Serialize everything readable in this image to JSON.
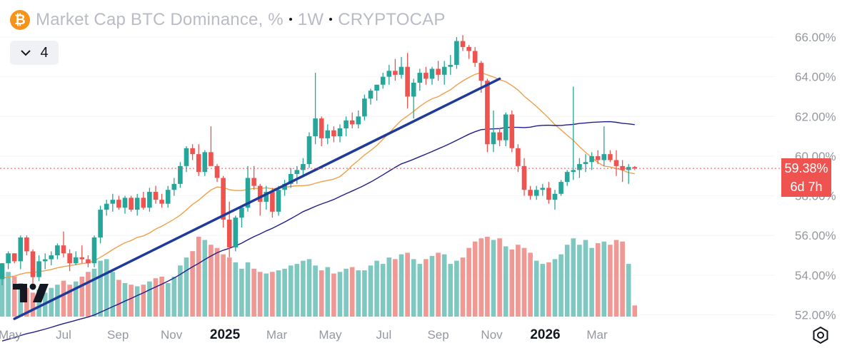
{
  "header": {
    "symbol_icon": "bitcoin-icon",
    "title": "Market Cap BTC Dominance, %",
    "interval": "1W",
    "exchange": "CRYPTOCAP"
  },
  "indicators_toggle": {
    "icon": "chevron-down-icon",
    "count": "4"
  },
  "price_label": {
    "value": "59.38%",
    "countdown": "6d 7h"
  },
  "colors": {
    "up": "#26a69a",
    "down": "#ef5350",
    "vol_up": "#7fc8c1",
    "vol_down": "#f09893",
    "ma_orange": "#f0a04b",
    "ma_navy": "#1f1f8a",
    "trendline": "#1e3a9a",
    "axis_text": "#9598a1",
    "price_line": "#ef5350"
  },
  "chart_data": {
    "type": "candlestick",
    "title": "Market Cap BTC Dominance, %",
    "interval": "1W",
    "y_axis": {
      "ticks": [
        "52.00%",
        "54.00%",
        "56.00%",
        "58.00%",
        "60.00%",
        "62.00%",
        "64.00%",
        "66.00%"
      ],
      "range": [
        51.8,
        67.0
      ]
    },
    "x_axis": {
      "ticks": [
        "May",
        "Jul",
        "Sep",
        "Nov",
        "2025",
        "Mar",
        "May",
        "Jul",
        "Sep",
        "Nov",
        "2026",
        "Mar"
      ],
      "tick_dates": [
        "2024-05-01",
        "2024-07-01",
        "2024-09-01",
        "2024-11-01",
        "2025-01-01",
        "2025-03-01",
        "2025-05-01",
        "2025-07-01",
        "2025-09-01",
        "2025-11-01",
        "2026-01-01",
        "2026-03-01"
      ]
    },
    "first_candle_date": "2024-04-22",
    "candles": [
      [
        53.8,
        54.6,
        53.5,
        54.6
      ],
      [
        54.6,
        55.2,
        54.3,
        55.1
      ],
      [
        55.1,
        55.1,
        54.6,
        54.7
      ],
      [
        54.7,
        56.0,
        54.3,
        55.9
      ],
      [
        55.9,
        56.0,
        55.0,
        55.2
      ],
      [
        55.2,
        55.3,
        53.6,
        53.9
      ],
      [
        53.9,
        55.0,
        53.7,
        54.7
      ],
      [
        54.7,
        55.1,
        54.3,
        54.8
      ],
      [
        54.8,
        55.2,
        54.5,
        55.0
      ],
      [
        55.0,
        55.6,
        54.8,
        55.5
      ],
      [
        55.5,
        56.2,
        54.9,
        55.1
      ],
      [
        55.1,
        55.3,
        54.2,
        54.6
      ],
      [
        54.6,
        55.2,
        54.5,
        54.9
      ],
      [
        54.9,
        55.5,
        54.6,
        54.8
      ],
      [
        54.8,
        55.0,
        54.4,
        54.6
      ],
      [
        54.6,
        56.0,
        54.4,
        55.9
      ],
      [
        55.9,
        57.5,
        55.6,
        57.3
      ],
      [
        57.3,
        57.8,
        57.0,
        57.6
      ],
      [
        57.6,
        58.1,
        57.2,
        57.8
      ],
      [
        57.8,
        58.0,
        57.3,
        57.4
      ],
      [
        57.4,
        58.0,
        57.1,
        57.9
      ],
      [
        57.9,
        58.0,
        57.2,
        57.3
      ],
      [
        57.3,
        58.1,
        57.0,
        57.9
      ],
      [
        57.9,
        58.2,
        57.3,
        57.4
      ],
      [
        57.4,
        58.4,
        57.2,
        58.2
      ],
      [
        58.2,
        58.5,
        57.6,
        57.8
      ],
      [
        57.8,
        58.1,
        57.4,
        57.6
      ],
      [
        57.6,
        58.5,
        57.4,
        58.3
      ],
      [
        58.3,
        58.9,
        58.0,
        58.6
      ],
      [
        58.6,
        59.7,
        58.4,
        59.5
      ],
      [
        59.5,
        60.5,
        59.2,
        60.4
      ],
      [
        60.4,
        60.6,
        59.8,
        60.1
      ],
      [
        60.1,
        60.6,
        59.0,
        59.2
      ],
      [
        59.2,
        60.3,
        59.0,
        60.2
      ],
      [
        60.2,
        61.5,
        59.6,
        59.5
      ],
      [
        59.5,
        59.6,
        58.7,
        58.9
      ],
      [
        58.9,
        59.0,
        56.4,
        56.8
      ],
      [
        56.8,
        57.7,
        54.9,
        55.4
      ],
      [
        55.4,
        57.0,
        55.2,
        56.9
      ],
      [
        56.9,
        57.3,
        56.4,
        57.4
      ],
      [
        57.4,
        59.5,
        57.2,
        58.9
      ],
      [
        58.9,
        59.5,
        58.3,
        58.5
      ],
      [
        58.5,
        58.6,
        57.0,
        57.7
      ],
      [
        57.7,
        58.5,
        57.3,
        58.2
      ],
      [
        58.2,
        58.4,
        56.9,
        57.2
      ],
      [
        57.2,
        58.5,
        57.0,
        58.3
      ],
      [
        58.3,
        58.8,
        58.0,
        58.6
      ],
      [
        58.6,
        59.4,
        58.4,
        59.1
      ],
      [
        59.1,
        59.5,
        58.6,
        59.3
      ],
      [
        59.3,
        59.9,
        59.0,
        59.6
      ],
      [
        59.6,
        61.2,
        59.4,
        61.0
      ],
      [
        61.0,
        64.2,
        60.6,
        61.9
      ],
      [
        61.9,
        62.0,
        60.5,
        60.9
      ],
      [
        60.9,
        61.6,
        60.6,
        61.3
      ],
      [
        61.3,
        61.5,
        60.7,
        61.0
      ],
      [
        61.0,
        61.6,
        60.7,
        61.4
      ],
      [
        61.4,
        62.0,
        61.0,
        61.8
      ],
      [
        61.8,
        62.2,
        61.4,
        61.6
      ],
      [
        61.6,
        62.3,
        61.4,
        62.0
      ],
      [
        62.0,
        63.1,
        61.8,
        62.9
      ],
      [
        62.9,
        63.4,
        62.6,
        63.3
      ],
      [
        63.3,
        63.6,
        62.8,
        63.6
      ],
      [
        63.6,
        64.2,
        63.4,
        64.0
      ],
      [
        64.0,
        64.6,
        63.6,
        64.3
      ],
      [
        64.3,
        64.9,
        63.8,
        64.1
      ],
      [
        64.1,
        65.0,
        63.9,
        64.5
      ],
      [
        64.5,
        65.2,
        62.4,
        63.0
      ],
      [
        63.0,
        63.9,
        61.9,
        63.7
      ],
      [
        63.7,
        64.4,
        63.3,
        64.2
      ],
      [
        64.2,
        64.5,
        63.6,
        63.9
      ],
      [
        63.9,
        64.5,
        63.6,
        64.4
      ],
      [
        64.4,
        64.8,
        63.8,
        64.1
      ],
      [
        64.1,
        64.8,
        63.6,
        64.5
      ],
      [
        64.5,
        65.1,
        64.1,
        64.6
      ],
      [
        64.6,
        66.0,
        64.4,
        65.8
      ],
      [
        65.8,
        66.1,
        65.3,
        65.5
      ],
      [
        65.5,
        65.6,
        64.9,
        65.3
      ],
      [
        65.3,
        65.5,
        64.5,
        64.7
      ],
      [
        64.7,
        64.8,
        63.2,
        63.8
      ],
      [
        63.8,
        63.9,
        60.2,
        60.6
      ],
      [
        60.6,
        62.3,
        60.2,
        61.2
      ],
      [
        61.2,
        61.4,
        60.5,
        60.8
      ],
      [
        60.8,
        62.2,
        60.5,
        62.1
      ],
      [
        62.1,
        62.3,
        60.2,
        60.4
      ],
      [
        60.4,
        60.6,
        59.2,
        59.5
      ],
      [
        59.5,
        59.9,
        58.0,
        58.3
      ],
      [
        58.3,
        58.5,
        57.8,
        58.0
      ],
      [
        58.0,
        58.5,
        57.8,
        58.3
      ],
      [
        58.3,
        58.6,
        58.0,
        58.4
      ],
      [
        58.4,
        58.7,
        57.6,
        57.8
      ],
      [
        57.8,
        58.3,
        57.3,
        58.1
      ],
      [
        58.1,
        58.8,
        58.0,
        58.7
      ],
      [
        58.7,
        59.3,
        58.5,
        59.2
      ],
      [
        59.2,
        63.5,
        58.8,
        59.3
      ],
      [
        59.3,
        59.9,
        58.9,
        59.6
      ],
      [
        59.6,
        60.1,
        59.2,
        59.7
      ],
      [
        59.7,
        60.2,
        59.3,
        60.0
      ],
      [
        60.0,
        60.3,
        59.6,
        59.8
      ],
      [
        59.8,
        61.5,
        59.5,
        60.1
      ],
      [
        60.1,
        60.3,
        59.7,
        59.8
      ],
      [
        59.8,
        60.3,
        59.0,
        59.5
      ],
      [
        59.5,
        59.8,
        58.7,
        59.3
      ],
      [
        59.3,
        59.6,
        58.6,
        59.45
      ],
      [
        59.45,
        59.5,
        59.3,
        59.38
      ]
    ],
    "volume_relative": [
      0.62,
      0.56,
      0.5,
      0.42,
      0.36,
      0.3,
      0.34,
      0.3,
      0.36,
      0.4,
      0.45,
      0.4,
      0.44,
      0.5,
      0.56,
      0.6,
      0.7,
      0.72,
      0.56,
      0.46,
      0.42,
      0.4,
      0.38,
      0.4,
      0.44,
      0.48,
      0.5,
      0.42,
      0.5,
      0.64,
      0.74,
      0.82,
      1.0,
      0.96,
      0.9,
      0.86,
      0.78,
      0.74,
      0.68,
      0.6,
      0.68,
      0.6,
      0.56,
      0.54,
      0.56,
      0.58,
      0.6,
      0.64,
      0.66,
      0.7,
      0.72,
      0.64,
      0.58,
      0.62,
      0.54,
      0.56,
      0.6,
      0.62,
      0.58,
      0.58,
      0.64,
      0.7,
      0.66,
      0.74,
      0.72,
      0.78,
      0.8,
      0.72,
      0.66,
      0.72,
      0.76,
      0.8,
      0.78,
      0.66,
      0.7,
      0.74,
      0.86,
      0.94,
      0.98,
      1.0,
      0.96,
      0.98,
      0.88,
      0.84,
      0.9,
      0.86,
      0.8,
      0.7,
      0.66,
      0.68,
      0.72,
      0.78,
      0.9,
      0.98,
      0.9,
      0.96,
      0.86,
      0.92,
      0.94,
      0.9,
      0.96,
      0.94,
      0.66,
      0.14
    ],
    "trendline": {
      "from": [
        "2024-05-06",
        51.8
      ],
      "to": [
        "2025-11-10",
        63.9
      ]
    }
  }
}
